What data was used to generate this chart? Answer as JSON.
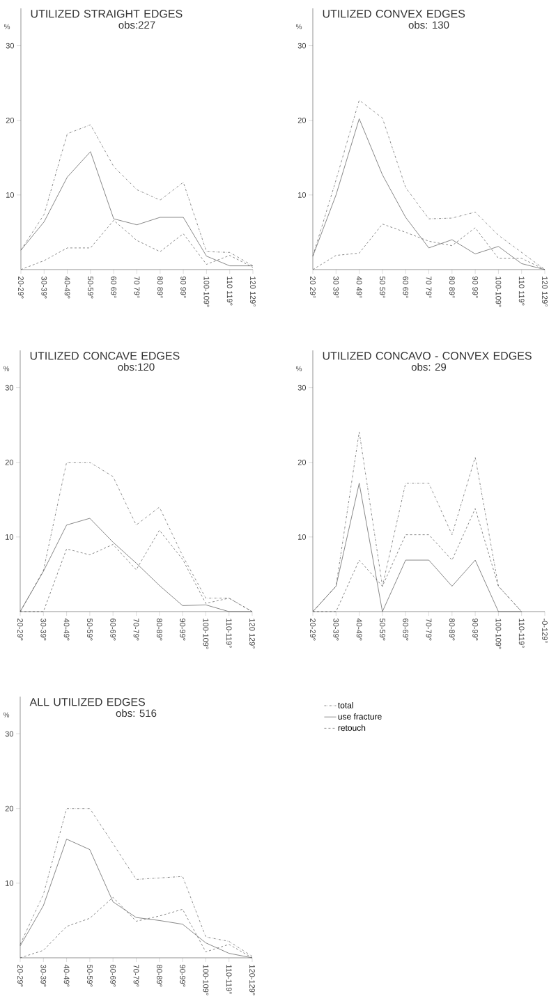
{
  "chart_data": [
    {
      "type": "line",
      "title": "UTILIZED STRAIGHT EDGES",
      "subtitle": "obs:227",
      "ylabel": "%",
      "categories": [
        "20-29°",
        "30-39°",
        "40-49°",
        "50-59°",
        "60 69°",
        "70 79°",
        "80 89°",
        "90 99°",
        "100-109°",
        "110 119°",
        "120 129°"
      ],
      "series": [
        {
          "color": "#555555",
          "line_style": "dashdot",
          "values": [
            2.6,
            7.4,
            18.2,
            19.4,
            13.8,
            10.7,
            9.3,
            11.7,
            2.4,
            2.3,
            0.5
          ]
        },
        {
          "color": "#555555",
          "line_style": "solid",
          "values": [
            2.6,
            6.4,
            12.4,
            15.8,
            6.8,
            6.0,
            7.0,
            7.0,
            1.8,
            0.5,
            0.5
          ]
        },
        {
          "color": "#555555",
          "line_style": "dashed",
          "values": [
            0,
            1.2,
            2.9,
            2.9,
            6.6,
            3.9,
            2.4,
            4.8,
            0.7,
            1.9,
            0.3
          ]
        }
      ],
      "ylim": [
        0,
        35
      ],
      "yticks": [
        10,
        20,
        30
      ]
    },
    {
      "type": "line",
      "title": "UTILIZED CONVEX  EDGES",
      "subtitle": "obs: 130",
      "ylabel": "%",
      "categories": [
        "20 29°",
        "30 39°",
        "40 49°",
        "50 59°",
        "60 69°",
        "70 79°",
        "80 89°",
        "90 99°",
        "100-109°",
        "110 119°",
        "120 129°"
      ],
      "series": [
        {
          "color": "#555555",
          "line_style": "dashdot",
          "values": [
            1.8,
            12.0,
            22.7,
            20.3,
            11.0,
            6.8,
            6.9,
            7.7,
            4.6,
            2.3,
            0
          ]
        },
        {
          "color": "#555555",
          "line_style": "solid",
          "values": [
            1.8,
            10.0,
            20.2,
            12.7,
            7.0,
            2.9,
            4.0,
            2.1,
            3.1,
            0.8,
            0
          ]
        },
        {
          "color": "#555555",
          "line_style": "dashed",
          "values": [
            0,
            1.9,
            2.2,
            6.1,
            5.0,
            3.8,
            3.2,
            5.6,
            1.5,
            1.5,
            0
          ]
        }
      ],
      "ylim": [
        0,
        35
      ],
      "yticks": [
        10,
        20,
        30
      ]
    },
    {
      "type": "line",
      "title": "UTILIZED CONCAVE EDGES",
      "subtitle": "obs:120",
      "ylabel": "%",
      "categories": [
        "20-29°",
        "30-39°",
        "40-49°",
        "50-59°",
        "60-69°",
        "70-79°",
        "80-89°",
        "90-99°",
        "100-109°",
        "110-119°",
        "120 129°"
      ],
      "series": [
        {
          "color": "#555555",
          "line_style": "dashdot",
          "values": [
            0,
            5.5,
            20.0,
            20.0,
            18.1,
            11.6,
            14.0,
            7.5,
            1.8,
            1.8,
            0
          ]
        },
        {
          "color": "#555555",
          "line_style": "solid",
          "values": [
            0,
            5.4,
            11.6,
            12.5,
            9.3,
            6.5,
            3.5,
            0.8,
            0.9,
            0,
            0
          ]
        },
        {
          "color": "#555555",
          "line_style": "dashed",
          "values": [
            0,
            0,
            8.4,
            7.6,
            9.0,
            5.6,
            10.9,
            7.0,
            1.1,
            1.8,
            0
          ]
        }
      ],
      "ylim": [
        0,
        35
      ],
      "yticks": [
        10,
        20,
        30
      ]
    },
    {
      "type": "line",
      "title": "UTILIZED CONCAVO - CONVEX EDGES",
      "subtitle": "obs: 29",
      "ylabel": "%",
      "categories": [
        "20-29°",
        "30-39°",
        "40-49°",
        "50-59°",
        "60-69°",
        "70-79°",
        "80-89°",
        "90-99°",
        "100-109°",
        "110-119°",
        "-0-129°"
      ],
      "series": [
        {
          "color": "#555555",
          "line_style": "dashdot",
          "values": [
            0,
            3.4,
            24.1,
            3.4,
            17.2,
            17.2,
            10.3,
            20.7,
            3.4,
            0,
            null
          ]
        },
        {
          "color": "#555555",
          "line_style": "solid",
          "values": [
            0,
            3.4,
            17.2,
            0,
            6.9,
            6.9,
            3.4,
            6.9,
            0,
            0,
            null
          ]
        },
        {
          "color": "#555555",
          "line_style": "dashed",
          "values": [
            0,
            0,
            6.9,
            3.4,
            10.3,
            10.3,
            6.9,
            13.8,
            3.4,
            0,
            null
          ]
        }
      ],
      "ylim": [
        0,
        35
      ],
      "yticks": [
        10,
        20,
        30
      ]
    },
    {
      "type": "line",
      "title": "ALL UTILIZED EDGES",
      "subtitle": "obs: 516",
      "ylabel": "%",
      "legend": "right",
      "categories": [
        "20-29°",
        "30-39°",
        "40-49°",
        "50-59°",
        "60-69°",
        "70-79°",
        "80-89°",
        "90-99°",
        "100-109°",
        "110-119°",
        "120-129°"
      ],
      "series": [
        {
          "name": "total",
          "color": "#555555",
          "line_style": "dashdot",
          "values": [
            1.8,
            8.5,
            20.0,
            20.0,
            15.3,
            10.5,
            10.7,
            10.9,
            2.8,
            2.2,
            0.2
          ]
        },
        {
          "name": "use fracture",
          "color": "#555555",
          "line_style": "solid",
          "values": [
            1.6,
            7.0,
            15.9,
            14.5,
            7.5,
            5.4,
            5.0,
            4.5,
            2.0,
            0.6,
            0
          ]
        },
        {
          "name": "retouch",
          "color": "#555555",
          "line_style": "dashed",
          "values": [
            0,
            1.0,
            4.2,
            5.3,
            8.1,
            4.9,
            5.6,
            6.5,
            0.8,
            1.8,
            0
          ]
        }
      ],
      "ylim": [
        0,
        35
      ],
      "yticks": [
        10,
        20,
        30
      ]
    }
  ]
}
